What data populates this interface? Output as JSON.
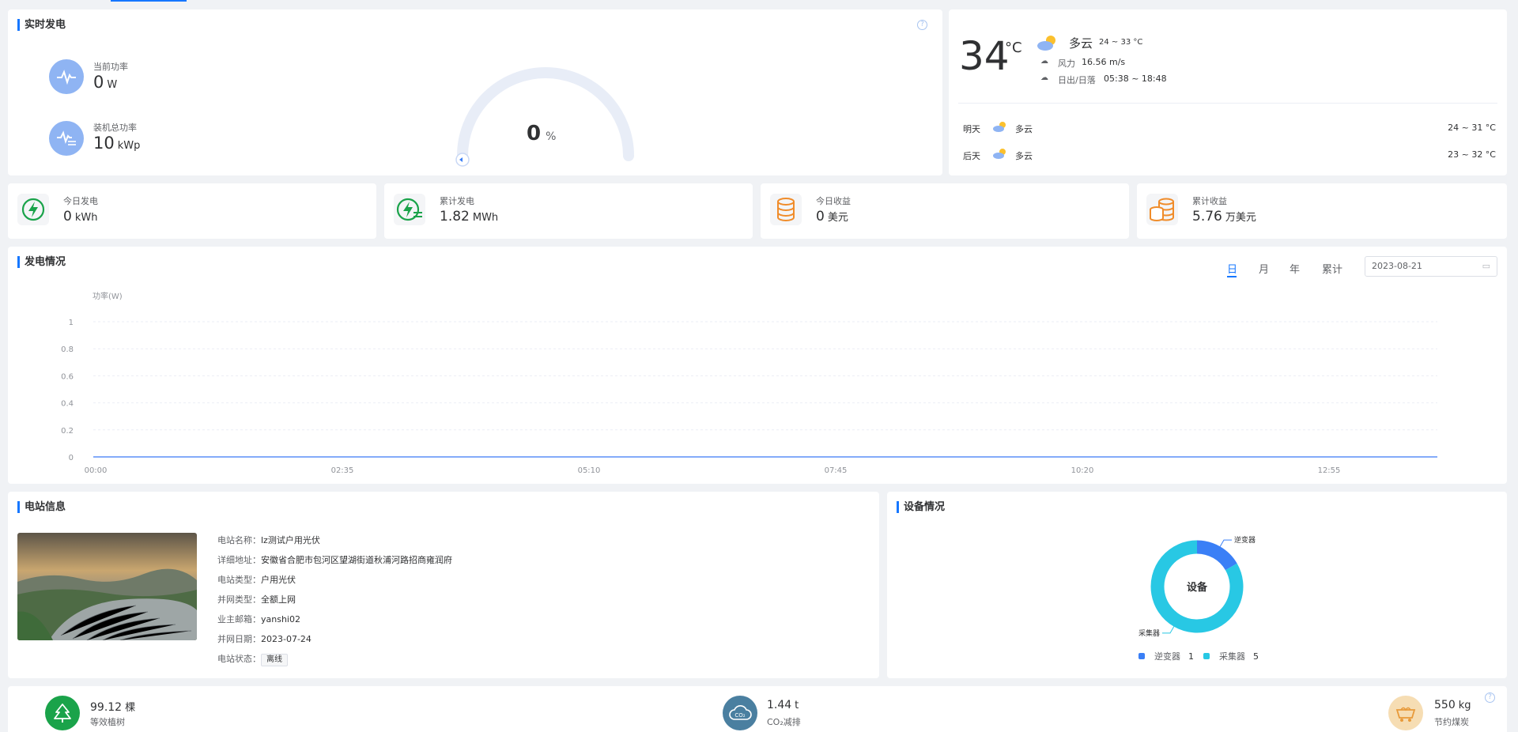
{
  "realtime": {
    "title": "实时发电",
    "current_power": {
      "label": "当前功率",
      "value": "0",
      "unit": "W"
    },
    "installed_power": {
      "label": "装机总功率",
      "value": "10",
      "unit": "kWp"
    },
    "gauge": {
      "value": "0",
      "unit": "%",
      "percent": 0
    }
  },
  "weather": {
    "temp": "34",
    "unit": "°C",
    "condition": "多云",
    "range": "24 ~ 33 °C",
    "wind_label": "风力",
    "wind_value": "16.56 m/s",
    "sun_label": "日出/日落",
    "sun_value": "05:38 ~ 18:48",
    "forecast": [
      {
        "day": "明天",
        "condition": "多云",
        "range": "24 ~ 31 °C"
      },
      {
        "day": "后天",
        "condition": "多云",
        "range": "23 ~ 32 °C"
      }
    ]
  },
  "stats": [
    {
      "label": "今日发电",
      "value": "0",
      "unit": "kWh",
      "icon": "lightning-icon"
    },
    {
      "label": "累计发电",
      "value": "1.82",
      "unit": "MWh",
      "icon": "lightning-total-icon"
    },
    {
      "label": "今日收益",
      "value": "0",
      "unit": "美元",
      "icon": "coin-stack-icon"
    },
    {
      "label": "累计收益",
      "value": "5.76",
      "unit": "万美元",
      "icon": "coin-stacks-icon"
    }
  ],
  "generation": {
    "title": "发电情况",
    "tabs": [
      "日",
      "月",
      "年",
      "累计"
    ],
    "active_tab": 0,
    "date": "2023-08-21"
  },
  "chart_data": {
    "type": "line",
    "ylabel": "功率(W)",
    "ylim": [
      0,
      1
    ],
    "yticks": [
      "0",
      "0.2",
      "0.4",
      "0.6",
      "0.8",
      "1"
    ],
    "x_ticks": [
      "00:00",
      "02:35",
      "05:10",
      "07:45",
      "10:20",
      "12:55"
    ],
    "series": [
      {
        "values": [
          0,
          0,
          0,
          0,
          0,
          0
        ],
        "color": "#5b8ff9"
      }
    ],
    "grid": true
  },
  "station": {
    "title": "电站信息",
    "rows": [
      {
        "key": "电站名称：",
        "value": "lz测试户用光伏"
      },
      {
        "key": "详细地址：",
        "value": "安徽省合肥市包河区望湖街道秋浦河路招商雍润府"
      },
      {
        "key": "电站类型：",
        "value": "户用光伏"
      },
      {
        "key": "并网类型：",
        "value": "全额上网"
      },
      {
        "key": "业主邮箱：",
        "value": "yanshi02"
      },
      {
        "key": "并网日期：",
        "value": "2023-07-24"
      }
    ],
    "status_key": "电站状态：",
    "status_value": "离线"
  },
  "devices": {
    "title": "设备情况",
    "center_label": "设备",
    "items": [
      {
        "name": "逆变器",
        "count": 1,
        "color": "#3a7ff6"
      },
      {
        "name": "采集器",
        "count": 5,
        "color": "#28c8e4"
      }
    ]
  },
  "eco": [
    {
      "value": "99.12",
      "unit": "棵",
      "label": "等效植树",
      "color": "#1aa34a",
      "icon": "tree-icon"
    },
    {
      "value": "1.44",
      "unit": "t",
      "label": "CO₂减排",
      "color": "#4a7fa0",
      "icon": "co2-cloud-icon"
    },
    {
      "value": "550",
      "unit": "kg",
      "label": "节约煤炭",
      "color": "#f6ddb3",
      "icon": "coal-cart-icon"
    }
  ],
  "colors": {
    "accent": "#1677ff",
    "icon_blue": "#8fb4f3",
    "green": "#1aa34a",
    "orange": "#f08c2a"
  }
}
